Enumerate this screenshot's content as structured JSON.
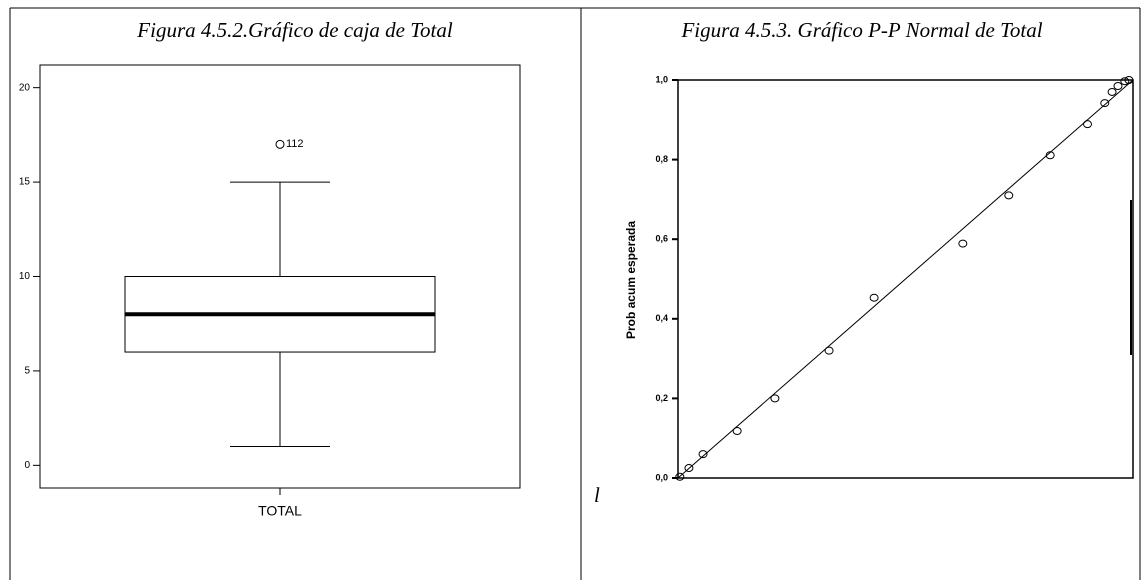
{
  "chart_data": [
    {
      "type": "box",
      "title": "Figura 4.5.2.Gráfico de caja de Total",
      "categories": [
        "TOTAL"
      ],
      "whisker_low": 1,
      "q1": 6,
      "median": 8,
      "q3": 10,
      "whisker_high": 15,
      "outliers": [
        17
      ],
      "outlier_labels": [
        "112"
      ],
      "ylim": [
        -1.2,
        21.2
      ],
      "yticks": [
        0,
        5,
        10,
        15,
        20
      ]
    },
    {
      "type": "scatter",
      "title": "Figura 4.5.3. Gráfico P-P Normal de Total",
      "y_label": "Prob acum esperada",
      "annotation": "l",
      "x": [
        0.004,
        0.024,
        0.055,
        0.13,
        0.213,
        0.332,
        0.431,
        0.626,
        0.727,
        0.818,
        0.9,
        0.938,
        0.954,
        0.967,
        0.982,
        0.991
      ],
      "values": [
        0.003,
        0.025,
        0.06,
        0.118,
        0.2,
        0.32,
        0.453,
        0.589,
        0.71,
        0.811,
        0.889,
        0.942,
        0.97,
        0.985,
        0.997,
        1.0
      ],
      "xlim": [
        0,
        1
      ],
      "ylim": [
        0,
        1
      ],
      "yticks": [
        {
          "value": 0,
          "label": "0,0"
        },
        {
          "value": 0.2,
          "label": "0,2"
        },
        {
          "value": 0.4,
          "label": "0,4"
        },
        {
          "value": 0.6,
          "label": "0,6"
        },
        {
          "value": 0.8,
          "label": "0,8"
        },
        {
          "value": 1,
          "label": "1,0"
        }
      ]
    }
  ]
}
